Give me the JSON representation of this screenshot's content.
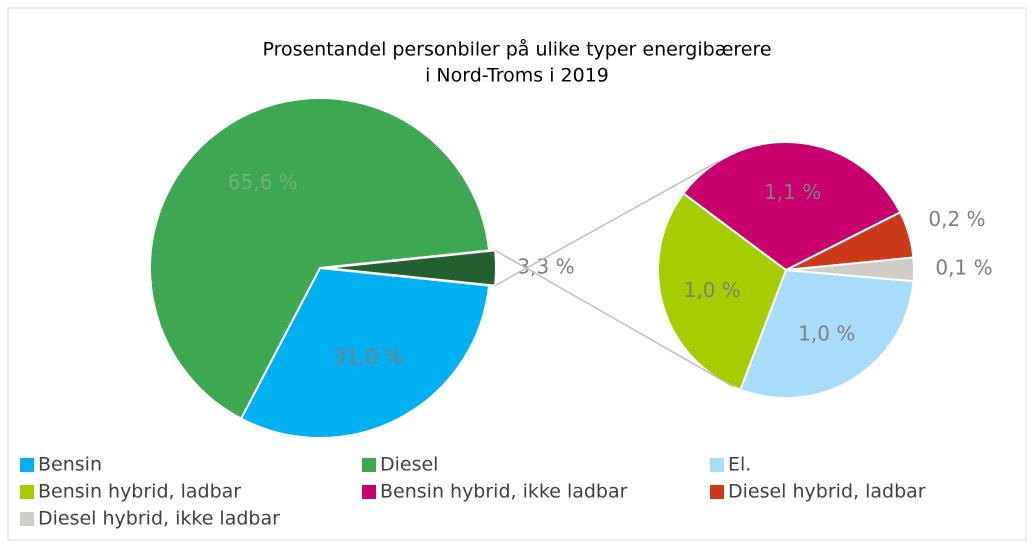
{
  "chart_data": {
    "type": "pie-of-pie",
    "title": [
      "Prosentandel personbiler på ulike typer energibærere",
      "i Nord-Troms i 2019"
    ],
    "pies": [
      {
        "categories": [
          "Bensin",
          "Diesel",
          null
        ],
        "values": [
          31.0,
          65.6,
          3.3
        ],
        "value_labels": [
          "31,0 %",
          "65,6 %",
          "3,3 %"
        ],
        "colors": [
          "#00b0f0",
          "#3da751",
          "#235f2f"
        ]
      },
      {
        "categories": [
          "El.",
          "Bensin hybrid, ladbar",
          "Bensin hybrid, ikke ladbar",
          "Diesel hybrid, ladbar",
          "Diesel hybrid, ikke ladbar"
        ],
        "values": [
          1.0,
          1.0,
          1.1,
          0.2,
          0.1
        ],
        "value_labels": [
          "1,0 %",
          "1,0 %",
          "1,1 %",
          "0,2 %",
          "0,1 %"
        ],
        "colors": [
          "#a9dcfb",
          "#a6cd00",
          "#c8006e",
          "#cc3a1a",
          "#d0cdc6"
        ]
      }
    ]
  }
}
